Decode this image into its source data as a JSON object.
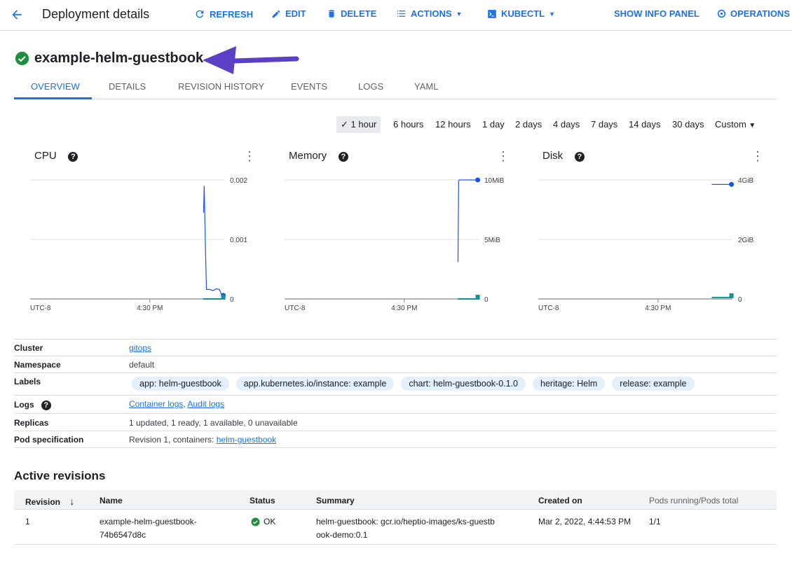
{
  "header": {
    "title": "Deployment details",
    "buttons": {
      "refresh": "REFRESH",
      "edit": "EDIT",
      "delete": "DELETE",
      "actions": "ACTIONS",
      "kubectl": "KUBECTL",
      "show_info_panel": "SHOW INFO PANEL",
      "operations": "OPERATIONS"
    }
  },
  "resource": {
    "name": "example-helm-guestbook",
    "status": "ok",
    "status_color": "#1e8e3e",
    "annotation_arrow_color": "#5b3fc4"
  },
  "tabs": [
    {
      "label": "OVERVIEW",
      "active": true
    },
    {
      "label": "DETAILS"
    },
    {
      "label": "REVISION HISTORY"
    },
    {
      "label": "EVENTS"
    },
    {
      "label": "LOGS"
    },
    {
      "label": "YAML"
    }
  ],
  "time_ranges": {
    "options": [
      "1 hour",
      "6 hours",
      "12 hours",
      "1 day",
      "2 days",
      "4 days",
      "7 days",
      "14 days",
      "30 days",
      "Custom"
    ],
    "selected": "1 hour"
  },
  "chart_data": [
    {
      "type": "line",
      "title": "CPU",
      "x_tick_labels": [
        "UTC-8",
        "4:30 PM"
      ],
      "y_tick_labels": [
        "0.002",
        "0.001",
        "0"
      ],
      "ylim": [
        0,
        0.002
      ],
      "xlim": [
        "15:53",
        "16:53"
      ],
      "grid": true,
      "series": [
        {
          "color": "#1a56db",
          "x": [
            "16:46.6",
            "16:46.8",
            "16:47.2",
            "16:47.5",
            "16:48.5",
            "16:49.5",
            "16:50.5",
            "16:51.5",
            "16:52",
            "16:52.7"
          ],
          "values": [
            0.00145,
            0.0019,
            0.0008,
            0.00016,
            0.00016,
            0.00014,
            0.00017,
            0.00016,
            9e-05,
            6e-05
          ]
        },
        {
          "color": "#12939a",
          "x": [
            "16:46.5",
            "16:52.7"
          ],
          "values": [
            0,
            0
          ]
        }
      ]
    },
    {
      "type": "line",
      "title": "Memory",
      "x_tick_labels": [
        "UTC-8",
        "4:30 PM"
      ],
      "y_tick_labels": [
        "10MiB",
        "5MiB",
        "0"
      ],
      "ylim": [
        0,
        10
      ],
      "xlim": [
        "15:53",
        "16:53"
      ],
      "grid": true,
      "series": [
        {
          "color": "#1a56db",
          "x": [
            "16:46.6",
            "16:46.8",
            "16:47",
            "16:52.7"
          ],
          "values": [
            3.1,
            9.9,
            10,
            10
          ]
        },
        {
          "color": "#12939a",
          "x": [
            "16:46.5",
            "16:52.7"
          ],
          "values": [
            0,
            0
          ]
        }
      ]
    },
    {
      "type": "line",
      "title": "Disk",
      "x_tick_labels": [
        "UTC-8",
        "4:30 PM"
      ],
      "y_tick_labels": [
        "4GiB",
        "2GiB",
        "0"
      ],
      "ylim": [
        0,
        4
      ],
      "xlim": [
        "15:53",
        "16:53"
      ],
      "grid": true,
      "series": [
        {
          "color": "#1a56db",
          "x": [
            "16:46.6",
            "16:52.7"
          ],
          "values": [
            3.85,
            3.85
          ]
        },
        {
          "color": "#12939a",
          "x": [
            "16:46.6",
            "16:52.7"
          ],
          "values": [
            0.05,
            0.05
          ]
        }
      ]
    }
  ],
  "info": {
    "cluster": {
      "label": "Cluster",
      "value": "gitops"
    },
    "namespace": {
      "label": "Namespace",
      "value": "default"
    },
    "labels": {
      "label": "Labels",
      "chips": [
        "app: helm-guestbook",
        "app.kubernetes.io/instance: example",
        "chart: helm-guestbook-0.1.0",
        "heritage: Helm",
        "release: example"
      ]
    },
    "logs": {
      "label": "Logs",
      "links": [
        "Container logs",
        "Audit logs"
      ],
      "sep": ","
    },
    "replicas": {
      "label": "Replicas",
      "value": "1 updated, 1 ready, 1 available, 0 unavailable"
    },
    "pod_spec": {
      "label": "Pod specification",
      "prefix": "Revision 1, containers: ",
      "link": "helm-guestbook"
    }
  },
  "active_revisions": {
    "title": "Active revisions",
    "columns": [
      "Revision",
      "Name",
      "Status",
      "Summary",
      "Created on",
      "Pods running/Pods total"
    ],
    "rows": [
      {
        "revision": "1",
        "name": "example-helm-guestbook-74b6547d8c",
        "status": "OK",
        "summary": "helm-guestbook: gcr.io/heptio-images/ks-guestbook-demo:0.1",
        "created": "Mar 2, 2022, 4:44:53 PM",
        "pods": "1/1"
      }
    ]
  }
}
